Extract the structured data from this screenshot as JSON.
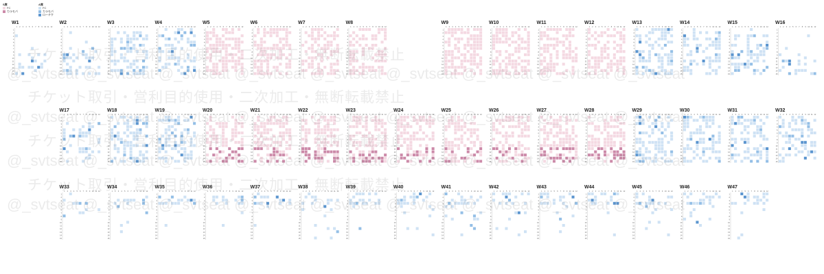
{
  "chart_data": {
    "type": "heatmap",
    "legend": [
      {
        "title": "S席",
        "items": [
          {
            "name": "FC",
            "color": "#f4d9e2"
          },
          {
            "name": "カラモバ",
            "color": "#cc8aa9"
          }
        ]
      },
      {
        "title": "A席",
        "items": [
          {
            "name": "FC",
            "color": "#cfe2f4"
          },
          {
            "name": "カラモバ",
            "color": "#94bfe6"
          },
          {
            "name": "ローチケ",
            "color": "#5b95cf"
          }
        ]
      }
    ],
    "col_labels": [
      "1",
      "2",
      "3",
      "4",
      "5",
      "6",
      "7",
      "8",
      "9",
      "10",
      "11",
      "12"
    ],
    "row_labels": [
      "1",
      "2",
      "3",
      "4",
      "5",
      "6",
      "7",
      "8",
      "9",
      "10",
      "11",
      "12",
      "13",
      "14",
      "15"
    ],
    "blocks": [
      {
        "name": "W1",
        "type": "A",
        "row": 0,
        "col": 0,
        "cols_shown": 12,
        "density": 0.15,
        "band": [
          8,
          14
        ]
      },
      {
        "name": "W2",
        "type": "A",
        "row": 0,
        "col": 1,
        "cols_shown": 12,
        "density": 0.3,
        "band": [
          6,
          14
        ]
      },
      {
        "name": "W3",
        "type": "A",
        "row": 0,
        "col": 2,
        "cols_shown": 12,
        "density": 0.45,
        "band": [
          1,
          14
        ]
      },
      {
        "name": "W4",
        "type": "A",
        "row": 0,
        "col": 3,
        "cols_shown": 12,
        "density": 0.4,
        "band": [
          0,
          14
        ]
      },
      {
        "name": "W5",
        "type": "S",
        "row": 0,
        "col": 4,
        "cols_shown": 12,
        "density": 0.5,
        "band": [
          0,
          14
        ]
      },
      {
        "name": "W6",
        "type": "S",
        "row": 0,
        "col": 5,
        "cols_shown": 12,
        "density": 0.55,
        "band": [
          0,
          14
        ]
      },
      {
        "name": "W7",
        "type": "S",
        "row": 0,
        "col": 6,
        "cols_shown": 12,
        "density": 0.5,
        "band": [
          0,
          14
        ]
      },
      {
        "name": "W8",
        "type": "S",
        "row": 0,
        "col": 7,
        "cols_shown": 12,
        "density": 0.5,
        "band": [
          0,
          14
        ]
      },
      {
        "name": "W9",
        "type": "S",
        "row": 0,
        "col": 9,
        "cols_shown": 12,
        "density": 0.55,
        "band": [
          0,
          14
        ]
      },
      {
        "name": "W10",
        "type": "S",
        "row": 0,
        "col": 10,
        "cols_shown": 12,
        "density": 0.6,
        "band": [
          0,
          14
        ]
      },
      {
        "name": "W11",
        "type": "S",
        "row": 0,
        "col": 11,
        "cols_shown": 12,
        "density": 0.55,
        "band": [
          0,
          14
        ]
      },
      {
        "name": "W12",
        "type": "S",
        "row": 0,
        "col": 12,
        "cols_shown": 12,
        "density": 0.55,
        "band": [
          0,
          14
        ]
      },
      {
        "name": "W13",
        "type": "A",
        "row": 0,
        "col": 13,
        "cols_shown": 12,
        "density": 0.45,
        "band": [
          0,
          14
        ]
      },
      {
        "name": "W14",
        "type": "A",
        "row": 0,
        "col": 14,
        "cols_shown": 12,
        "density": 0.4,
        "band": [
          1,
          14
        ]
      },
      {
        "name": "W15",
        "type": "A",
        "row": 0,
        "col": 15,
        "cols_shown": 12,
        "density": 0.4,
        "band": [
          2,
          14
        ]
      },
      {
        "name": "W16",
        "type": "A",
        "row": 0,
        "col": 16,
        "cols_shown": 12,
        "density": 0.25,
        "band": [
          8,
          14
        ]
      },
      {
        "name": "W17",
        "type": "A",
        "row": 1,
        "col": 1,
        "cols_shown": 12,
        "density": 0.3,
        "band": [
          3,
          14
        ]
      },
      {
        "name": "W18",
        "type": "A",
        "row": 1,
        "col": 2,
        "cols_shown": 12,
        "density": 0.45,
        "band": [
          0,
          14
        ]
      },
      {
        "name": "W19",
        "type": "A",
        "row": 1,
        "col": 3,
        "cols_shown": 12,
        "density": 0.45,
        "band": [
          0,
          14
        ]
      },
      {
        "name": "W20",
        "type": "S",
        "row": 1,
        "col": 4,
        "cols_shown": 12,
        "density": 0.5,
        "band": [
          0,
          14
        ]
      },
      {
        "name": "W21",
        "type": "S",
        "row": 1,
        "col": 5,
        "cols_shown": 12,
        "density": 0.55,
        "band": [
          0,
          14
        ]
      },
      {
        "name": "W22",
        "type": "S",
        "row": 1,
        "col": 6,
        "cols_shown": 12,
        "density": 0.55,
        "band": [
          0,
          14
        ]
      },
      {
        "name": "W23",
        "type": "S",
        "row": 1,
        "col": 7,
        "cols_shown": 12,
        "density": 0.5,
        "band": [
          0,
          14
        ]
      },
      {
        "name": "W24",
        "type": "S",
        "row": 1,
        "col": 8,
        "cols_shown": 12,
        "density": 0.45,
        "band": [
          0,
          14
        ]
      },
      {
        "name": "W25",
        "type": "S",
        "row": 1,
        "col": 9,
        "cols_shown": 12,
        "density": 0.5,
        "band": [
          0,
          14
        ]
      },
      {
        "name": "W26",
        "type": "S",
        "row": 1,
        "col": 10,
        "cols_shown": 12,
        "density": 0.55,
        "band": [
          0,
          14
        ]
      },
      {
        "name": "W27",
        "type": "S",
        "row": 1,
        "col": 11,
        "cols_shown": 12,
        "density": 0.55,
        "band": [
          0,
          14
        ]
      },
      {
        "name": "W28",
        "type": "S",
        "row": 1,
        "col": 12,
        "cols_shown": 12,
        "density": 0.55,
        "band": [
          0,
          14
        ]
      },
      {
        "name": "W29",
        "type": "A",
        "row": 1,
        "col": 13,
        "cols_shown": 12,
        "density": 0.45,
        "band": [
          0,
          14
        ]
      },
      {
        "name": "W30",
        "type": "A",
        "row": 1,
        "col": 14,
        "cols_shown": 12,
        "density": 0.45,
        "band": [
          0,
          14
        ]
      },
      {
        "name": "W31",
        "type": "A",
        "row": 1,
        "col": 15,
        "cols_shown": 12,
        "density": 0.4,
        "band": [
          0,
          14
        ]
      },
      {
        "name": "W32",
        "type": "A",
        "row": 1,
        "col": 16,
        "cols_shown": 12,
        "density": 0.4,
        "band": [
          0,
          14
        ]
      },
      {
        "name": "W33",
        "type": "A",
        "row": 2,
        "col": 1,
        "cols_shown": 12,
        "density": 0.3,
        "band": [
          2,
          3
        ]
      },
      {
        "name": "W34",
        "type": "A",
        "row": 2,
        "col": 2,
        "cols_shown": 12,
        "density": 0.4,
        "band": [
          1,
          3
        ]
      },
      {
        "name": "W35",
        "type": "A",
        "row": 2,
        "col": 3,
        "cols_shown": 12,
        "density": 0.4,
        "band": [
          1,
          3
        ]
      },
      {
        "name": "W36",
        "type": "A",
        "row": 2,
        "col": 4,
        "cols_shown": 12,
        "density": 0.4,
        "band": [
          1,
          3
        ]
      },
      {
        "name": "W37",
        "type": "A",
        "row": 2,
        "col": 5,
        "cols_shown": 12,
        "density": 0.3,
        "band": [
          1,
          3
        ]
      },
      {
        "name": "W38",
        "type": "A",
        "row": 2,
        "col": 6,
        "cols_shown": 12,
        "density": 0.4,
        "band": [
          1,
          3
        ]
      },
      {
        "name": "W39",
        "type": "A",
        "row": 2,
        "col": 7,
        "cols_shown": 12,
        "density": 0.4,
        "band": [
          0,
          3
        ]
      },
      {
        "name": "W40",
        "type": "A",
        "row": 2,
        "col": 8,
        "cols_shown": 12,
        "density": 0.4,
        "band": [
          0,
          3
        ]
      },
      {
        "name": "W41",
        "type": "A",
        "row": 2,
        "col": 9,
        "cols_shown": 12,
        "density": 0.4,
        "band": [
          0,
          3
        ]
      },
      {
        "name": "W42",
        "type": "A",
        "row": 2,
        "col": 10,
        "cols_shown": 12,
        "density": 0.4,
        "band": [
          0,
          3
        ]
      },
      {
        "name": "W43",
        "type": "A",
        "row": 2,
        "col": 11,
        "cols_shown": 12,
        "density": 0.4,
        "band": [
          0,
          3
        ]
      },
      {
        "name": "W44",
        "type": "A",
        "row": 2,
        "col": 12,
        "cols_shown": 12,
        "density": 0.4,
        "band": [
          0,
          3
        ]
      },
      {
        "name": "W45",
        "type": "A",
        "row": 2,
        "col": 13,
        "cols_shown": 12,
        "density": 0.4,
        "band": [
          0,
          3
        ]
      },
      {
        "name": "W46",
        "type": "A",
        "row": 2,
        "col": 14,
        "cols_shown": 12,
        "density": 0.45,
        "band": [
          0,
          3
        ]
      },
      {
        "name": "W47",
        "type": "A",
        "row": 2,
        "col": 15,
        "cols_shown": 12,
        "density": 0.4,
        "band": [
          0,
          3
        ]
      }
    ]
  },
  "watermark": {
    "jp": "チケット取引・営利目的使用・二次加工・無断転載禁止",
    "en": "@_svtseat @_svtseat @_svtseat @_svtseat @_svtseat @_svtseat @_svtseat @_svtseat @_svtseat"
  }
}
